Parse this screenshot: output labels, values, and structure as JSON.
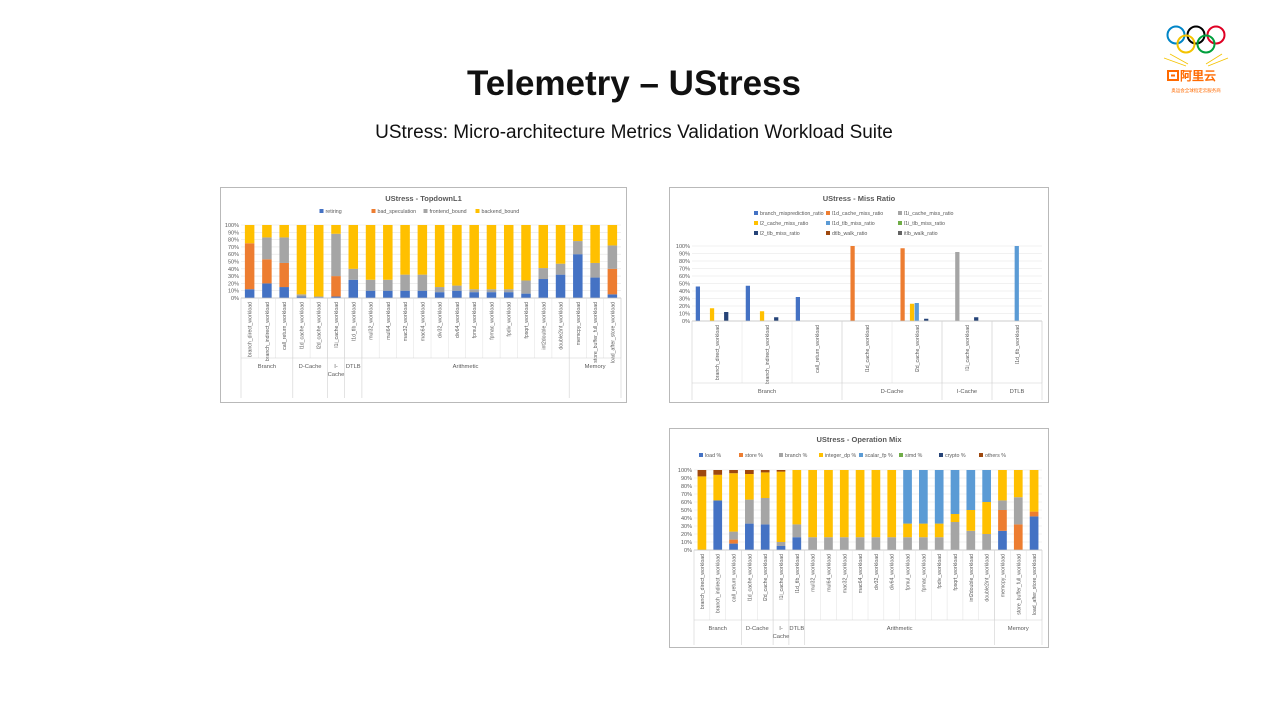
{
  "slide": {
    "title": "Telemetry – UStress",
    "subtitle": "UStress: Micro-architecture Metrics Validation Workload Suite",
    "logo_text": "阿里云",
    "logo_tagline": "奥运会全球指定云服务商"
  },
  "colors": {
    "blue": "#4472C4",
    "orange": "#ED7D31",
    "gray": "#A5A5A5",
    "yellow": "#FFC000",
    "lightblue": "#5B9BD5",
    "green": "#70AD47",
    "navy": "#264478",
    "brown": "#9E480E",
    "olive": "#997300",
    "darkgray": "#636363"
  },
  "chart_data": [
    {
      "type": "bar",
      "stacked": true,
      "title": "UStress - TopdownL1",
      "legend_position": "top",
      "ylim": [
        0,
        100
      ],
      "yticks": [
        "0%",
        "10%",
        "20%",
        "30%",
        "40%",
        "50%",
        "60%",
        "70%",
        "80%",
        "90%",
        "100%"
      ],
      "categories": [
        "branch_direct_workload",
        "branch_indirect_workload",
        "call_return_workload",
        "l1d_cache_workload",
        "l2d_cache_workload",
        "l1i_cache_workload",
        "l1d_tlb_workload",
        "mul32_workload",
        "mul64_workload",
        "mac32_workload",
        "mac64_workload",
        "div32_workload",
        "div64_workload",
        "fpmul_workload",
        "fpmac_workload",
        "fpdiv_workload",
        "fpsqrt_workload",
        "int2double_workload",
        "double2int_workload",
        "memcpy_workload",
        "store_buffer_full_workload",
        "load_after_store_workload"
      ],
      "groups": [
        {
          "label": "Branch",
          "span": 3
        },
        {
          "label": "D-Cache",
          "span": 2
        },
        {
          "label": "I-Cache",
          "span": 1
        },
        {
          "label": "DTLB",
          "span": 1
        },
        {
          "label": "Arithmetic",
          "span": 12
        },
        {
          "label": "Memory",
          "span": 3
        }
      ],
      "series": [
        {
          "name": "retiring",
          "color": "#4472C4",
          "values": [
            12,
            20,
            15,
            2,
            1,
            2,
            25,
            10,
            10,
            10,
            10,
            8,
            10,
            8,
            8,
            8,
            6,
            26,
            32,
            60,
            28,
            5
          ]
        },
        {
          "name": "bad_speculation",
          "color": "#ED7D31",
          "values": [
            63,
            33,
            33,
            0,
            0,
            28,
            0,
            0,
            0,
            0,
            0,
            0,
            0,
            0,
            0,
            0,
            0,
            0,
            0,
            0,
            0,
            35
          ]
        },
        {
          "name": "frontend_bound",
          "color": "#A5A5A5",
          "values": [
            0,
            30,
            35,
            3,
            1,
            58,
            15,
            15,
            15,
            22,
            22,
            7,
            7,
            4,
            4,
            4,
            18,
            15,
            15,
            18,
            20,
            32
          ]
        },
        {
          "name": "backend_bound",
          "color": "#FFC000",
          "values": [
            25,
            17,
            17,
            95,
            98,
            12,
            60,
            75,
            75,
            68,
            68,
            85,
            83,
            88,
            88,
            88,
            76,
            59,
            53,
            22,
            52,
            28
          ]
        }
      ]
    },
    {
      "type": "bar",
      "stacked": false,
      "title": "UStress - Miss Ratio",
      "legend_position": "top",
      "ylim": [
        0,
        100
      ],
      "yticks": [
        "0%",
        "10%",
        "20%",
        "30%",
        "40%",
        "50%",
        "60%",
        "70%",
        "80%",
        "90%",
        "100%"
      ],
      "categories": [
        "branch_direct_workload",
        "branch_indirect_workload",
        "call_return_workload",
        "l1d_cache_workload",
        "l2d_cache_workload",
        "l1i_cache_workload",
        "l1d_tlb_workload"
      ],
      "groups": [
        {
          "label": "Branch",
          "span": 3
        },
        {
          "label": "D-Cache",
          "span": 2
        },
        {
          "label": "I-Cache",
          "span": 1
        },
        {
          "label": "DTLB",
          "span": 1
        }
      ],
      "series": [
        {
          "name": "branch_misprediction_ratio",
          "color": "#4472C4",
          "values": [
            46,
            47,
            32,
            0,
            0,
            0,
            0
          ]
        },
        {
          "name": "l1d_cache_miss_ratio",
          "color": "#ED7D31",
          "values": [
            0,
            0,
            0,
            100,
            97,
            0,
            0
          ]
        },
        {
          "name": "l1i_cache_miss_ratio",
          "color": "#A5A5A5",
          "values": [
            0,
            0,
            0,
            0,
            0,
            92,
            0
          ]
        },
        {
          "name": "l2_cache_miss_ratio",
          "color": "#FFC000",
          "values": [
            17,
            13,
            0,
            0,
            23,
            0,
            0
          ]
        },
        {
          "name": "l1d_tlb_miss_ratio",
          "color": "#5B9BD5",
          "values": [
            0,
            0,
            0,
            0,
            24,
            0,
            100
          ]
        },
        {
          "name": "l1i_tlb_miss_ratio",
          "color": "#70AD47",
          "values": [
            0,
            0,
            0,
            0,
            0,
            0,
            0
          ]
        },
        {
          "name": "l2_tlb_miss_ratio",
          "color": "#264478",
          "values": [
            12,
            5,
            0,
            0,
            3,
            5,
            0
          ]
        },
        {
          "name": "dtlb_walk_ratio",
          "color": "#9E480E",
          "values": [
            0,
            0,
            0,
            0,
            0,
            0,
            0
          ]
        },
        {
          "name": "itlb_walk_ratio",
          "color": "#636363",
          "values": [
            0,
            0,
            0,
            0,
            0,
            0,
            0
          ]
        }
      ]
    },
    {
      "type": "bar",
      "stacked": true,
      "title": "UStress - Operation Mix",
      "legend_position": "top",
      "ylim": [
        0,
        100
      ],
      "yticks": [
        "0%",
        "10%",
        "20%",
        "30%",
        "40%",
        "50%",
        "60%",
        "70%",
        "80%",
        "90%",
        "100%"
      ],
      "categories": [
        "branch_direct_workload",
        "branch_indirect_workload",
        "call_return_workload",
        "l1d_cache_workload",
        "l2d_cache_workload",
        "l1i_cache_workload",
        "l1d_tlb_workload",
        "mul32_workload",
        "mul64_workload",
        "mac32_workload",
        "mac64_workload",
        "div32_workload",
        "div64_workload",
        "fpmul_workload",
        "fpmac_workload",
        "fpdiv_workload",
        "fpsqrt_workload",
        "int2double_workload",
        "double2int_workload",
        "memcpy_workload",
        "store_buffer_full_workload",
        "load_after_store_workload"
      ],
      "groups": [
        {
          "label": "Branch",
          "span": 3
        },
        {
          "label": "D-Cache",
          "span": 2
        },
        {
          "label": "I-Cache",
          "span": 1
        },
        {
          "label": "DTLB",
          "span": 1
        },
        {
          "label": "Arithmetic",
          "span": 12
        },
        {
          "label": "Memory",
          "span": 3
        }
      ],
      "series": [
        {
          "name": "load %",
          "color": "#4472C4",
          "values": [
            0,
            62,
            8,
            33,
            32,
            5,
            16,
            0,
            0,
            0,
            0,
            0,
            0,
            0,
            0,
            0,
            0,
            0,
            0,
            24,
            0,
            42
          ]
        },
        {
          "name": "store %",
          "color": "#ED7D31",
          "values": [
            0,
            0,
            5,
            0,
            0,
            0,
            0,
            0,
            0,
            0,
            0,
            0,
            0,
            0,
            0,
            0,
            0,
            0,
            0,
            26,
            32,
            6
          ]
        },
        {
          "name": "branch %",
          "color": "#A5A5A5",
          "values": [
            0,
            0,
            10,
            30,
            33,
            5,
            16,
            16,
            16,
            16,
            16,
            16,
            16,
            16,
            16,
            16,
            35,
            24,
            20,
            12,
            34,
            0
          ]
        },
        {
          "name": "integer_dp %",
          "color": "#FFC000",
          "values": [
            92,
            32,
            73,
            32,
            32,
            88,
            68,
            84,
            84,
            84,
            84,
            84,
            84,
            17,
            17,
            17,
            10,
            26,
            40,
            38,
            34,
            52
          ]
        },
        {
          "name": "scalar_fp %",
          "color": "#5B9BD5",
          "values": [
            0,
            0,
            0,
            0,
            0,
            0,
            0,
            0,
            0,
            0,
            0,
            0,
            0,
            67,
            67,
            67,
            55,
            50,
            40,
            0,
            0,
            0
          ]
        },
        {
          "name": "simd %",
          "color": "#70AD47",
          "values": [
            0,
            0,
            0,
            0,
            0,
            0,
            0,
            0,
            0,
            0,
            0,
            0,
            0,
            0,
            0,
            0,
            0,
            0,
            0,
            0,
            0,
            0
          ]
        },
        {
          "name": "crypto %",
          "color": "#264478",
          "values": [
            0,
            0,
            0,
            0,
            0,
            0,
            0,
            0,
            0,
            0,
            0,
            0,
            0,
            0,
            0,
            0,
            0,
            0,
            0,
            0,
            0,
            0
          ]
        },
        {
          "name": "others %",
          "color": "#9E480E",
          "values": [
            8,
            6,
            4,
            5,
            3,
            2,
            0,
            0,
            0,
            0,
            0,
            0,
            0,
            0,
            0,
            0,
            0,
            0,
            0,
            0,
            0,
            0
          ]
        }
      ]
    }
  ]
}
